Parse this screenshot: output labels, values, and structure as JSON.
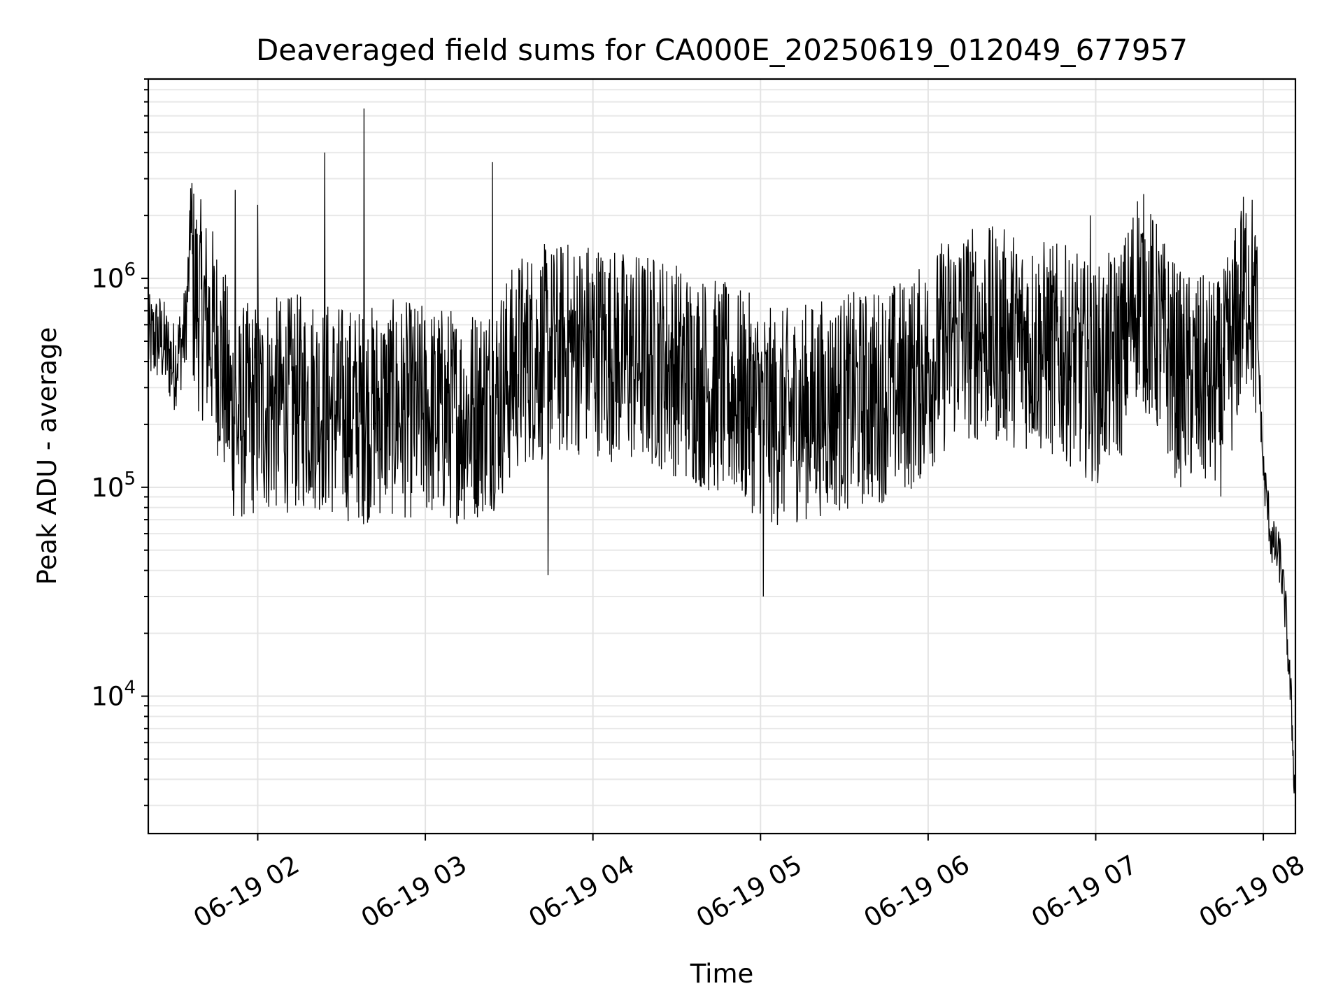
{
  "chart_data": {
    "type": "line",
    "title": "Deaveraged field sums for CA000E_20250619_012049_677957",
    "xlabel": "Time",
    "ylabel": "Peak ADU - average",
    "yscale": "log",
    "ylim": [
      2200,
      9000000
    ],
    "xlim": [
      "06-19 01:20:49",
      "06-19 08:11:30"
    ],
    "x_tick_labels": [
      "06-19 02",
      "06-19 03",
      "06-19 04",
      "06-19 05",
      "06-19 06",
      "06-19 07",
      "06-19 08"
    ],
    "y_tick_labels": [
      {
        "base": "10",
        "exp": "4"
      },
      {
        "base": "10",
        "exp": "5"
      },
      {
        "base": "10",
        "exp": "6"
      }
    ],
    "grid": true,
    "legend": "none",
    "line_color": "#000000",
    "series": [
      {
        "x": [
          "06-19 01:20:49",
          "06-19 01:25",
          "06-19 01:30",
          "06-19 01:34",
          "06-19 01:36",
          "06-19 01:37",
          "06-19 01:38",
          "06-19 01:40",
          "06-19 01:45",
          "06-19 01:48",
          "06-19 01:50",
          "06-19 01:53",
          "06-19 01:55",
          "06-19 02:00",
          "06-19 02:10",
          "06-19 02:20",
          "06-19 02:25",
          "06-19 02:30",
          "06-19 02:38",
          "06-19 02:45",
          "06-19 03:00",
          "06-19 03:15",
          "06-19 03:25",
          "06-19 03:35",
          "06-19 03:50",
          "06-19 04:00",
          "06-19 04:10",
          "06-19 04:25",
          "06-19 04:35",
          "06-19 04:50",
          "06-19 05:00",
          "06-19 05:05",
          "06-19 05:20",
          "06-19 05:40",
          "06-19 05:55",
          "06-19 06:10",
          "06-19 06:30",
          "06-19 06:50",
          "06-19 07:00",
          "06-19 07:10",
          "06-19 07:15",
          "06-19 07:30",
          "06-19 07:45",
          "06-19 07:52",
          "06-19 07:55",
          "06-19 07:58",
          "06-19 08:00",
          "06-19 08:03",
          "06-19 08:06",
          "06-19 08:08",
          "06-19 08:10",
          "06-19 08:11:30"
        ],
        "values": [
          500000,
          520000,
          380000,
          550000,
          1500000,
          900000,
          800000,
          700000,
          500000,
          350000,
          250000,
          200000,
          230000,
          240000,
          250000,
          260000,
          240000,
          230000,
          220000,
          240000,
          230000,
          220000,
          260000,
          420000,
          460000,
          480000,
          420000,
          400000,
          340000,
          280000,
          240000,
          210000,
          240000,
          270000,
          320000,
          560000,
          520000,
          430000,
          340000,
          470000,
          900000,
          330000,
          300000,
          700000,
          1050000,
          500000,
          120000,
          55000,
          45000,
          25000,
          9000,
          3000
        ],
        "peaks": [
          {
            "x": "06-19 01:36",
            "y": 2700000
          },
          {
            "x": "06-19 01:52",
            "y": 2650000
          },
          {
            "x": "06-19 02:00",
            "y": 2250000
          },
          {
            "x": "06-19 02:24",
            "y": 4000000
          },
          {
            "x": "06-19 02:38",
            "y": 6500000
          },
          {
            "x": "06-19 03:24",
            "y": 3600000
          },
          {
            "x": "06-19 06:58",
            "y": 2000000
          },
          {
            "x": "06-19 07:52",
            "y": 2100000
          }
        ],
        "dips": [
          {
            "x": "06-19 03:44",
            "y": 38000
          },
          {
            "x": "06-19 05:01",
            "y": 30000
          }
        ]
      }
    ]
  }
}
